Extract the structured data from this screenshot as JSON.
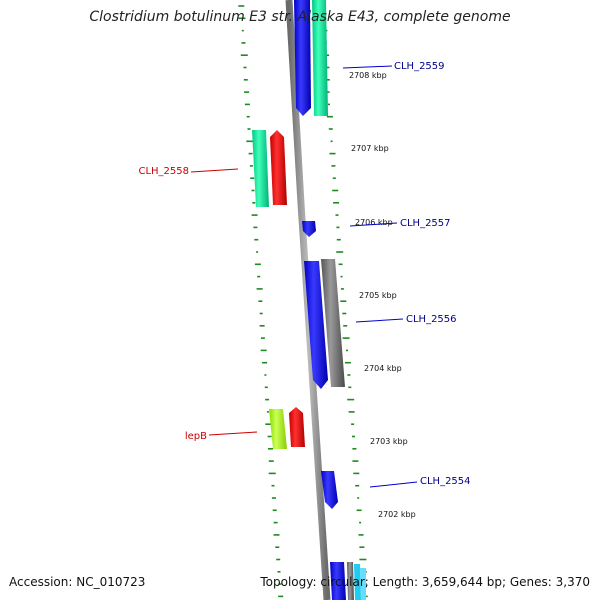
{
  "title": "Clostridium botulinum E3 str. Alaska E43, complete genome",
  "accession": "Accession: NC_010723",
  "topology": "Topology: circular; Length: 3,659,644 bp; Genes: 3,370",
  "colors": {
    "gc_ticks": "#1f8a1f",
    "backbone": "#8a8a8a",
    "blue": "#0000ee",
    "teal": "#00e39a",
    "red": "#ee0000",
    "lime": "#aaff22",
    "gray": "#707070",
    "label_blue": "#00008b",
    "label_red": "#cc0000"
  },
  "ticks": [
    {
      "label": "2708 kbp"
    },
    {
      "label": "2707 kbp"
    },
    {
      "label": "2706 kbp"
    },
    {
      "label": "2705 kbp"
    },
    {
      "label": "2704 kbp"
    },
    {
      "label": "2703 kbp"
    },
    {
      "label": "2702 kbp"
    }
  ],
  "genes": [
    {
      "label": "CLH_2559",
      "color": "blue"
    },
    {
      "label": "CLH_2558",
      "color": "red"
    },
    {
      "label": "CLH_2557",
      "color": "blue"
    },
    {
      "label": "CLH_2556",
      "color": "blue"
    },
    {
      "label": "lepB",
      "color": "red"
    },
    {
      "label": "CLH_2554",
      "color": "blue"
    }
  ]
}
